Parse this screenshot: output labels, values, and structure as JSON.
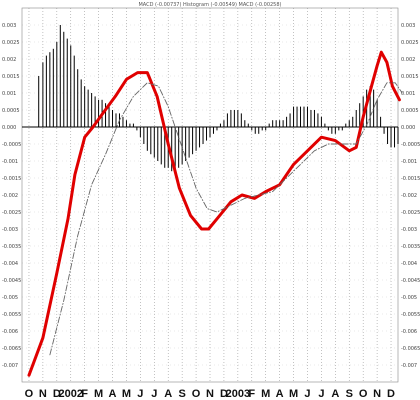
{
  "chart_data": {
    "type": "line",
    "title": "MACD (-0.00737) Histogram (-0.00549) MACD (-0.00258)",
    "x_labels": [
      "O",
      "N",
      "D",
      "2002",
      "F",
      "M",
      "A",
      "M",
      "J",
      "J",
      "A",
      "S",
      "O",
      "N",
      "D",
      "2003",
      "F",
      "M",
      "A",
      "M",
      "J",
      "J",
      "A",
      "S",
      "O",
      "N",
      "D"
    ],
    "ylim": [
      -0.0075,
      0.0035
    ],
    "y_ticks": [
      0.003,
      0.0025,
      0.002,
      0.0015,
      0.001,
      0.0005,
      0.0,
      -0.0005,
      -0.001,
      -0.0015,
      -0.002,
      -0.0025,
      -0.003,
      -0.0035,
      -0.004,
      -0.0045,
      -0.005,
      -0.0055,
      -0.006,
      -0.0065,
      -0.007
    ],
    "y_tick_labels": [
      "0.003",
      "0.0025",
      "0.002",
      "0.0015",
      "0.001",
      "0.0005",
      "0.000",
      "-0.0005",
      "-0.001",
      "-0.0015",
      "-0.002",
      "-0.0025",
      "-0.003",
      "-0.0035",
      "-0.004",
      "-0.0045",
      "-0.005",
      "-0.0055",
      "-0.006",
      "-0.0065",
      "-0.007"
    ],
    "grid": true,
    "series": [
      {
        "name": "MACD",
        "color": "#e00000",
        "style": "solid",
        "points": [
          [
            0.0,
            -0.0073
          ],
          [
            1.0,
            -0.0062
          ],
          [
            2.0,
            -0.0043
          ],
          [
            2.8,
            -0.0027
          ],
          [
            3.3,
            -0.0014
          ],
          [
            4.0,
            -0.0003
          ],
          [
            4.6,
            0.0
          ],
          [
            5.3,
            0.0004
          ],
          [
            6.2,
            0.0009
          ],
          [
            7.0,
            0.0014
          ],
          [
            7.8,
            0.0016
          ],
          [
            8.5,
            0.0016
          ],
          [
            9.2,
            0.0009
          ],
          [
            10.0,
            -0.0005
          ],
          [
            10.8,
            -0.0018
          ],
          [
            11.6,
            -0.0026
          ],
          [
            12.4,
            -0.003
          ],
          [
            12.9,
            -0.003
          ],
          [
            13.5,
            -0.0027
          ],
          [
            14.5,
            -0.0022
          ],
          [
            15.3,
            -0.002
          ],
          [
            16.2,
            -0.0021
          ],
          [
            17.0,
            -0.0019
          ],
          [
            18.0,
            -0.0017
          ],
          [
            19.0,
            -0.0011
          ],
          [
            20.0,
            -0.0007
          ],
          [
            21.0,
            -0.0003
          ],
          [
            22.0,
            -0.0004
          ],
          [
            23.0,
            -0.0007
          ],
          [
            23.5,
            -0.0006
          ],
          [
            24.0,
            0.0003
          ],
          [
            24.6,
            0.0012
          ],
          [
            25.0,
            0.0018
          ],
          [
            25.3,
            0.0022
          ],
          [
            25.7,
            0.0019
          ],
          [
            26.1,
            0.0012
          ],
          [
            26.6,
            0.0008
          ]
        ]
      },
      {
        "name": "Signal",
        "color": "#666666",
        "style": "dashed",
        "points": [
          [
            1.5,
            -0.0067
          ],
          [
            2.5,
            -0.0051
          ],
          [
            3.5,
            -0.0032
          ],
          [
            4.5,
            -0.0017
          ],
          [
            5.5,
            -0.0008
          ],
          [
            6.5,
            0.0002
          ],
          [
            7.5,
            0.0009
          ],
          [
            8.5,
            0.0013
          ],
          [
            9.3,
            0.0012
          ],
          [
            10.0,
            0.0006
          ],
          [
            11.0,
            -0.0006
          ],
          [
            12.0,
            -0.0018
          ],
          [
            12.8,
            -0.0024
          ],
          [
            13.5,
            -0.0025
          ],
          [
            14.5,
            -0.0023
          ],
          [
            15.5,
            -0.0021
          ],
          [
            16.5,
            -0.002
          ],
          [
            17.5,
            -0.0019
          ],
          [
            18.5,
            -0.0015
          ],
          [
            19.5,
            -0.0011
          ],
          [
            20.5,
            -0.0007
          ],
          [
            21.5,
            -0.0005
          ],
          [
            22.5,
            -0.0005
          ],
          [
            23.5,
            -0.0005
          ],
          [
            24.3,
            0.0001
          ],
          [
            25.0,
            0.0008
          ],
          [
            25.7,
            0.0013
          ],
          [
            26.3,
            0.0013
          ],
          [
            26.8,
            0.001
          ]
        ]
      },
      {
        "name": "Histogram",
        "color": "#000000",
        "style": "bars",
        "points": [
          [
            0.7,
            0.0015
          ],
          [
            1.0,
            0.0019
          ],
          [
            1.25,
            0.0021
          ],
          [
            1.5,
            0.0022
          ],
          [
            1.75,
            0.0023
          ],
          [
            2.0,
            0.0025
          ],
          [
            2.25,
            0.003
          ],
          [
            2.5,
            0.0028
          ],
          [
            2.75,
            0.0026
          ],
          [
            3.0,
            0.0024
          ],
          [
            3.25,
            0.0021
          ],
          [
            3.5,
            0.0017
          ],
          [
            3.75,
            0.0014
          ],
          [
            4.0,
            0.0012
          ],
          [
            4.25,
            0.0011
          ],
          [
            4.5,
            0.001
          ],
          [
            4.75,
            0.0009
          ],
          [
            5.0,
            0.0008
          ],
          [
            5.25,
            0.0008
          ],
          [
            5.5,
            0.0007
          ],
          [
            5.75,
            0.0006
          ],
          [
            6.0,
            0.0005
          ],
          [
            6.25,
            0.0004
          ],
          [
            6.5,
            0.0004
          ],
          [
            6.75,
            0.0003
          ],
          [
            7.0,
            0.0002
          ],
          [
            7.25,
            0.0001
          ],
          [
            7.5,
            0.0001
          ],
          [
            7.75,
            -0.0001
          ],
          [
            8.0,
            -0.0003
          ],
          [
            8.25,
            -0.0005
          ],
          [
            8.5,
            -0.0007
          ],
          [
            8.75,
            -0.0008
          ],
          [
            9.0,
            -0.0009
          ],
          [
            9.25,
            -0.001
          ],
          [
            9.5,
            -0.0011
          ],
          [
            9.75,
            -0.0012
          ],
          [
            10.0,
            -0.0012
          ],
          [
            10.25,
            -0.0013
          ],
          [
            10.5,
            -0.0013
          ],
          [
            10.75,
            -0.0012
          ],
          [
            11.0,
            -0.0011
          ],
          [
            11.25,
            -0.001
          ],
          [
            11.5,
            -0.0009
          ],
          [
            11.75,
            -0.0008
          ],
          [
            12.0,
            -0.0007
          ],
          [
            12.25,
            -0.0006
          ],
          [
            12.5,
            -0.0005
          ],
          [
            12.75,
            -0.0004
          ],
          [
            13.0,
            -0.0003
          ],
          [
            13.25,
            -0.0002
          ],
          [
            13.5,
            -0.0001
          ],
          [
            13.75,
            0.0001
          ],
          [
            14.0,
            0.0002
          ],
          [
            14.25,
            0.0004
          ],
          [
            14.5,
            0.0005
          ],
          [
            14.75,
            0.0005
          ],
          [
            15.0,
            0.0005
          ],
          [
            15.25,
            0.0004
          ],
          [
            15.5,
            0.0002
          ],
          [
            15.75,
            0.0001
          ],
          [
            16.0,
            -0.0001
          ],
          [
            16.25,
            -0.0002
          ],
          [
            16.5,
            -0.0002
          ],
          [
            16.75,
            -0.0001
          ],
          [
            17.0,
            -0.0001
          ],
          [
            17.25,
            0.0001
          ],
          [
            17.5,
            0.0002
          ],
          [
            17.75,
            0.0002
          ],
          [
            18.0,
            0.0002
          ],
          [
            18.25,
            0.0002
          ],
          [
            18.5,
            0.0003
          ],
          [
            18.75,
            0.0004
          ],
          [
            19.0,
            0.0006
          ],
          [
            19.25,
            0.0006
          ],
          [
            19.5,
            0.0006
          ],
          [
            19.75,
            0.0006
          ],
          [
            20.0,
            0.0006
          ],
          [
            20.25,
            0.0005
          ],
          [
            20.5,
            0.0005
          ],
          [
            20.75,
            0.0004
          ],
          [
            21.0,
            0.0003
          ],
          [
            21.25,
            0.0001
          ],
          [
            21.5,
            -0.0001
          ],
          [
            21.75,
            -0.0002
          ],
          [
            22.0,
            -0.0002
          ],
          [
            22.25,
            -0.0001
          ],
          [
            22.5,
            -0.0001
          ],
          [
            22.75,
            0.0001
          ],
          [
            23.0,
            0.0002
          ],
          [
            23.25,
            0.0003
          ],
          [
            23.5,
            0.0005
          ],
          [
            23.75,
            0.0007
          ],
          [
            24.0,
            0.0009
          ],
          [
            24.25,
            0.0011
          ],
          [
            24.5,
            0.0012
          ],
          [
            24.75,
            0.0011
          ],
          [
            25.0,
            0.0008
          ],
          [
            25.25,
            0.0003
          ],
          [
            25.5,
            -0.0002
          ],
          [
            25.75,
            -0.0005
          ],
          [
            26.0,
            -0.0006
          ],
          [
            26.25,
            -0.0006
          ],
          [
            26.5,
            -0.0005
          ]
        ]
      }
    ]
  }
}
